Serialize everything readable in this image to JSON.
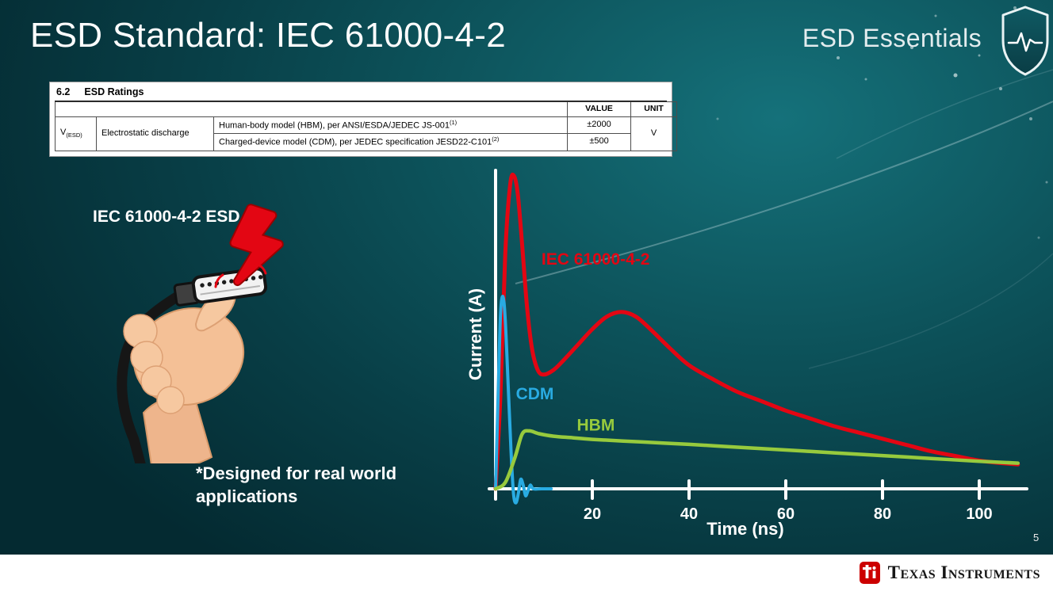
{
  "slide": {
    "title": "ESD Standard: IEC 61000-4-2",
    "brand": "ESD Essentials",
    "page_number": "5",
    "footer_logo": "Texas Instruments"
  },
  "table": {
    "section": "6.2",
    "section_title": "ESD Ratings",
    "headers": {
      "value": "VALUE",
      "unit": "UNIT"
    },
    "param_symbol": "V",
    "param_symbol_sub": "(ESD)",
    "param_name": "Electrostatic discharge",
    "rows": [
      {
        "desc": "Human-body model (HBM), per ANSI/ESDA/JEDEC JS-001",
        "sup": "(1)",
        "value": "±2000"
      },
      {
        "desc": "Charged-device model (CDM), per JEDEC specification JESD22-C101",
        "sup": "(2)",
        "value": "±500"
      }
    ],
    "unit": "V"
  },
  "left": {
    "connector_label": "IEC 61000-4-2 ESD",
    "note_line1": "*Designed for real world",
    "note_line2": "applications"
  },
  "icons": {
    "shield": "shield-pulse-icon",
    "bolt": "lightning-bolt-icon",
    "connector": "hdmi-connector-with-hand",
    "ti_bug": "texas-instruments-logo-icon"
  },
  "colors": {
    "background_teal": "#0d545c",
    "iec_red": "#e30613",
    "cdm_blue": "#29abe2",
    "hbm_green": "#97ca3d",
    "axis_white": "#ffffff",
    "footer_white": "#ffffff",
    "ti_red": "#cc0000"
  },
  "chart_data": {
    "type": "line",
    "title": "",
    "xlabel": "Time (ns)",
    "ylabel": "Current (A)",
    "x_ticks": [
      20,
      40,
      60,
      80,
      100
    ],
    "xlim": [
      0,
      110
    ],
    "ylim": [
      0,
      1.05
    ],
    "y_axis_ticks": [],
    "y_scale_note": "y axis unlabeled in figure; values normalized to IEC peak = 1.0",
    "grid": false,
    "legend_position": "inline-labels",
    "series": [
      {
        "name": "IEC 61000-4-2",
        "color": "#e30613",
        "stroke_width": 5,
        "label_at": {
          "t": 9.5,
          "v": 0.73
        },
        "points": [
          [
            0,
            0
          ],
          [
            1,
            0.3
          ],
          [
            2,
            0.75
          ],
          [
            3,
            0.97
          ],
          [
            3.8,
            1.0
          ],
          [
            4.6,
            0.94
          ],
          [
            5.5,
            0.78
          ],
          [
            6.5,
            0.58
          ],
          [
            7.5,
            0.45
          ],
          [
            8.7,
            0.38
          ],
          [
            10,
            0.365
          ],
          [
            12,
            0.38
          ],
          [
            14,
            0.41
          ],
          [
            17,
            0.46
          ],
          [
            20,
            0.51
          ],
          [
            23,
            0.55
          ],
          [
            26,
            0.565
          ],
          [
            29,
            0.55
          ],
          [
            32,
            0.51
          ],
          [
            36,
            0.45
          ],
          [
            40,
            0.395
          ],
          [
            45,
            0.35
          ],
          [
            50,
            0.31
          ],
          [
            55,
            0.28
          ],
          [
            60,
            0.25
          ],
          [
            65,
            0.225
          ],
          [
            70,
            0.2
          ],
          [
            75,
            0.18
          ],
          [
            80,
            0.16
          ],
          [
            85,
            0.14
          ],
          [
            90,
            0.12
          ],
          [
            95,
            0.105
          ],
          [
            100,
            0.09
          ],
          [
            104,
            0.083
          ],
          [
            108,
            0.078
          ]
        ]
      },
      {
        "name": "CDM",
        "color": "#29abe2",
        "stroke_width": 4,
        "label_at": {
          "t": 4.2,
          "v": 0.3
        },
        "points": [
          [
            0,
            0
          ],
          [
            0.5,
            0.28
          ],
          [
            1.0,
            0.55
          ],
          [
            1.5,
            0.615
          ],
          [
            2.0,
            0.54
          ],
          [
            2.6,
            0.33
          ],
          [
            3.2,
            0.12
          ],
          [
            3.7,
            -0.015
          ],
          [
            4.2,
            -0.045
          ],
          [
            4.7,
            -0.015
          ],
          [
            5.2,
            0.03
          ],
          [
            5.7,
            0.012
          ],
          [
            6.2,
            -0.022
          ],
          [
            6.7,
            -0.006
          ],
          [
            7.2,
            0.012
          ],
          [
            7.8,
            0
          ],
          [
            9.5,
            0
          ],
          [
            11.5,
            0
          ]
        ]
      },
      {
        "name": "HBM",
        "color": "#97ca3d",
        "stroke_width": 4.5,
        "label_at": {
          "t": 16.8,
          "v": 0.2
        },
        "points": [
          [
            0,
            0
          ],
          [
            2,
            0.02
          ],
          [
            4,
            0.1
          ],
          [
            5.5,
            0.175
          ],
          [
            7,
            0.185
          ],
          [
            9,
            0.176
          ],
          [
            12,
            0.168
          ],
          [
            16,
            0.163
          ],
          [
            20,
            0.158
          ],
          [
            30,
            0.15
          ],
          [
            40,
            0.142
          ],
          [
            50,
            0.133
          ],
          [
            60,
            0.124
          ],
          [
            70,
            0.115
          ],
          [
            80,
            0.106
          ],
          [
            90,
            0.097
          ],
          [
            100,
            0.088
          ],
          [
            108,
            0.082
          ]
        ]
      }
    ]
  }
}
